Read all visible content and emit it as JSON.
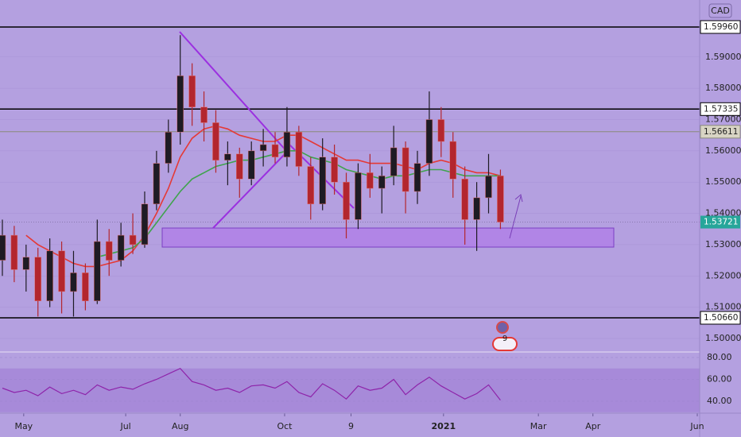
{
  "chart_data": {
    "type": "candlestick",
    "currency": "CAD",
    "x": [
      -9,
      -4,
      1,
      6,
      11,
      16,
      21,
      26,
      31,
      36,
      41,
      46,
      51,
      56,
      61,
      66,
      71,
      76,
      81,
      86,
      91,
      96,
      101,
      106,
      111,
      116,
      121,
      126,
      131,
      136,
      141,
      146,
      151,
      156,
      161,
      166,
      171,
      176,
      181,
      186,
      191,
      196,
      201
    ],
    "open": [
      1.525,
      1.533,
      1.522,
      1.526,
      1.512,
      1.528,
      1.515,
      1.521,
      1.512,
      1.531,
      1.525,
      1.533,
      1.53,
      1.543,
      1.556,
      1.566,
      1.584,
      1.574,
      1.569,
      1.557,
      1.559,
      1.551,
      1.56,
      1.562,
      1.558,
      1.566,
      1.555,
      1.543,
      1.558,
      1.55,
      1.538,
      1.553,
      1.548,
      1.552,
      1.561,
      1.547,
      1.556,
      1.57,
      1.563,
      1.551,
      1.538,
      1.545,
      1.552
    ],
    "high": [
      1.538,
      1.536,
      1.53,
      1.529,
      1.532,
      1.531,
      1.528,
      1.524,
      1.538,
      1.535,
      1.537,
      1.54,
      1.547,
      1.56,
      1.57,
      1.597,
      1.588,
      1.579,
      1.573,
      1.563,
      1.561,
      1.563,
      1.567,
      1.566,
      1.574,
      1.568,
      1.558,
      1.564,
      1.562,
      1.553,
      1.556,
      1.559,
      1.555,
      1.568,
      1.563,
      1.56,
      1.579,
      1.574,
      1.566,
      1.555,
      1.55,
      1.559,
      1.554
    ],
    "low": [
      1.52,
      1.518,
      1.515,
      1.507,
      1.51,
      1.508,
      1.507,
      1.509,
      1.511,
      1.52,
      1.523,
      1.527,
      1.529,
      1.541,
      1.553,
      1.562,
      1.568,
      1.563,
      1.553,
      1.549,
      1.545,
      1.549,
      1.555,
      1.556,
      1.555,
      1.552,
      1.538,
      1.541,
      1.546,
      1.532,
      1.535,
      1.545,
      1.54,
      1.549,
      1.54,
      1.543,
      1.552,
      1.558,
      1.545,
      1.53,
      1.528,
      1.54,
      1.535
    ],
    "close": [
      1.533,
      1.522,
      1.526,
      1.512,
      1.528,
      1.515,
      1.521,
      1.512,
      1.531,
      1.525,
      1.533,
      1.53,
      1.543,
      1.556,
      1.566,
      1.584,
      1.574,
      1.569,
      1.557,
      1.559,
      1.551,
      1.56,
      1.562,
      1.558,
      1.566,
      1.555,
      1.543,
      1.558,
      1.55,
      1.538,
      1.553,
      1.548,
      1.552,
      1.561,
      1.547,
      1.556,
      1.57,
      1.563,
      1.551,
      1.538,
      1.545,
      1.552,
      1.53721
    ],
    "up_color": "#1e1b24",
    "down_color": "#b3262e",
    "series": [
      {
        "color": "#e53935",
        "values": [
          null,
          null,
          1.533,
          1.53,
          1.528,
          1.526,
          1.524,
          1.523,
          1.523,
          1.524,
          1.525,
          1.528,
          1.533,
          1.54,
          1.548,
          1.558,
          1.564,
          1.567,
          1.568,
          1.567,
          1.565,
          1.564,
          1.563,
          1.563,
          1.565,
          1.565,
          1.563,
          1.561,
          1.559,
          1.557,
          1.557,
          1.556,
          1.556,
          1.556,
          1.555,
          1.554,
          1.556,
          1.557,
          1.556,
          1.554,
          1.553,
          1.553,
          1.552
        ]
      },
      {
        "color": "#3fa34d",
        "values": [
          null,
          null,
          null,
          null,
          null,
          null,
          null,
          null,
          1.526,
          1.527,
          1.528,
          1.529,
          1.532,
          1.537,
          1.542,
          1.547,
          1.551,
          1.553,
          1.555,
          1.556,
          1.557,
          1.557,
          1.558,
          1.559,
          1.56,
          1.56,
          1.558,
          1.557,
          1.556,
          1.554,
          1.553,
          1.552,
          1.551,
          1.552,
          1.552,
          1.553,
          1.554,
          1.554,
          1.553,
          1.552,
          1.552,
          1.552,
          1.552
        ]
      }
    ],
    "xlim": [
      -10,
      285
    ],
    "xticks": [
      {
        "value": 0,
        "label": "May"
      },
      {
        "value": 43,
        "label": "Jul"
      },
      {
        "value": 66,
        "label": "Aug"
      },
      {
        "value": 110,
        "label": "Oct"
      },
      {
        "value": 138,
        "label": "9"
      },
      {
        "value": 177,
        "label": "2021"
      },
      {
        "value": 217,
        "label": "Mar"
      },
      {
        "value": 240,
        "label": "Apr"
      },
      {
        "value": 284,
        "label": "Jun"
      }
    ],
    "ylim": [
      1.49567,
      1.60824
    ],
    "yticks": [
      {
        "value": 1.5,
        "label": "1.50000"
      },
      {
        "value": 1.51,
        "label": "1.51000"
      },
      {
        "value": 1.52,
        "label": "1.52000"
      },
      {
        "value": 1.53,
        "label": "1.53000"
      },
      {
        "value": 1.54,
        "label": "1.54000"
      },
      {
        "value": 1.55,
        "label": "1.55000"
      },
      {
        "value": 1.56,
        "label": "1.56000"
      },
      {
        "value": 1.57,
        "label": "1.57000"
      },
      {
        "value": 1.58,
        "label": "1.58000"
      },
      {
        "value": 1.59,
        "label": "1.59000"
      }
    ],
    "levels": [
      {
        "value": 1.5996,
        "label": "1.59960",
        "color": "#000000"
      },
      {
        "value": 1.57335,
        "label": "1.57335",
        "color": "#000000"
      },
      {
        "value": 1.56611,
        "label": "1.56611",
        "color": "#8a8a7a"
      },
      {
        "value": 1.5066,
        "label": "1.50660",
        "color": "#000000"
      }
    ],
    "last_price": {
      "value": 1.53721,
      "label": "1.53721",
      "color": "#26a69a"
    },
    "badge": "9",
    "rsi": {
      "ylim": [
        29.1,
        83.6
      ],
      "yticks": [
        {
          "value": 80,
          "label": "80.00"
        },
        {
          "value": 60,
          "label": "60.00"
        },
        {
          "value": 40,
          "label": "40.00"
        }
      ],
      "band": [
        30,
        70
      ],
      "color": "#8e24aa",
      "values": [
        52,
        48,
        50,
        45,
        53,
        47,
        50,
        46,
        55,
        50,
        53,
        51,
        56,
        60,
        65,
        70,
        58,
        55,
        50,
        52,
        48,
        54,
        55,
        52,
        58,
        48,
        44,
        56,
        50,
        42,
        54,
        50,
        52,
        60,
        46,
        55,
        62,
        54,
        48,
        42,
        47,
        55,
        41
      ]
    }
  }
}
